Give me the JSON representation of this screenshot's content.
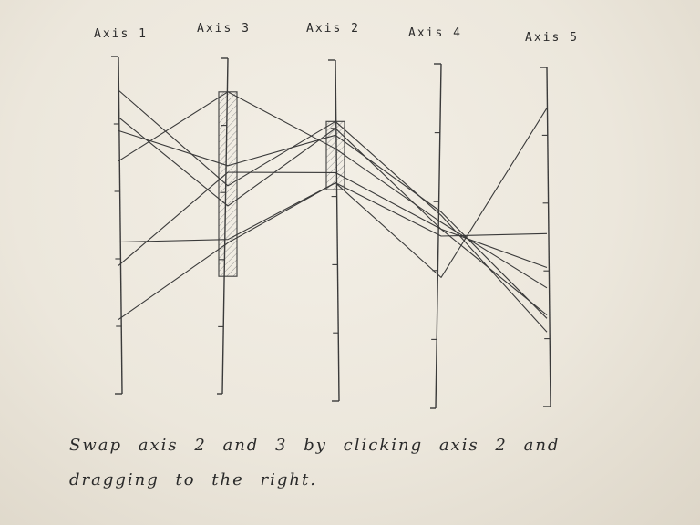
{
  "axes": [
    {
      "id": "axis-1",
      "label": "Axis 1"
    },
    {
      "id": "axis-3",
      "label": "Axis 3"
    },
    {
      "id": "axis-2",
      "label": "Axis 2"
    },
    {
      "id": "axis-4",
      "label": "Axis 4"
    },
    {
      "id": "axis-5",
      "label": "Axis 5"
    }
  ],
  "caption": {
    "line1": "Swap axis 2 and 3 by clicking axis 2 and",
    "line2": "dragging to the right."
  },
  "polylines": [
    [
      0.1,
      0.38,
      0.18,
      0.44,
      0.78
    ],
    [
      0.18,
      0.44,
      0.2,
      0.48,
      0.73
    ],
    [
      0.22,
      0.32,
      0.22,
      0.43,
      0.74
    ],
    [
      0.31,
      0.1,
      0.26,
      0.46,
      0.65
    ],
    [
      0.55,
      0.54,
      0.36,
      0.5,
      0.49
    ],
    [
      0.62,
      0.34,
      0.33,
      0.48,
      0.59
    ],
    [
      0.78,
      0.55,
      0.36,
      0.62,
      0.12
    ]
  ],
  "brushes": [
    {
      "axis": 1,
      "from": 0.1,
      "to": 0.65
    },
    {
      "axis": 2,
      "from": 0.18,
      "to": 0.38
    }
  ],
  "colors": {
    "ink": "#3a3a3a",
    "hatch": "#8a8a8a"
  }
}
